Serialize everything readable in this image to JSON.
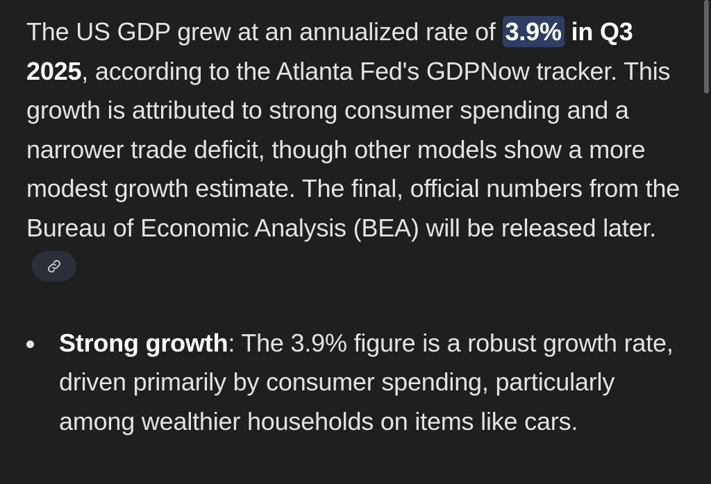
{
  "paragraph": {
    "part1": "The US GDP grew at an annualized rate of ",
    "highlight_value": "3.9%",
    "bold_period": " in Q3 2025",
    "part2": ", according to the Atlanta Fed's GDPNow tracker. This growth is attributed to strong consumer spending and a narrower trade deficit, though other models show a more modest growth estimate. The final, official numbers from the Bureau of Economic Analysis (BEA) will be released later.",
    "link_icon": "link-icon"
  },
  "bullets": [
    {
      "title": "Strong growth",
      "text": ": The 3.9% figure is a robust growth rate, driven primarily by consumer spending, particularly among wealthier households on items like cars."
    }
  ],
  "colors": {
    "background": "#1f1f1f",
    "text": "#e3e3e3",
    "highlight_bg": "#2e3d63",
    "chip_bg": "#2a2f38",
    "scroll_thumb": "#5f6368"
  }
}
